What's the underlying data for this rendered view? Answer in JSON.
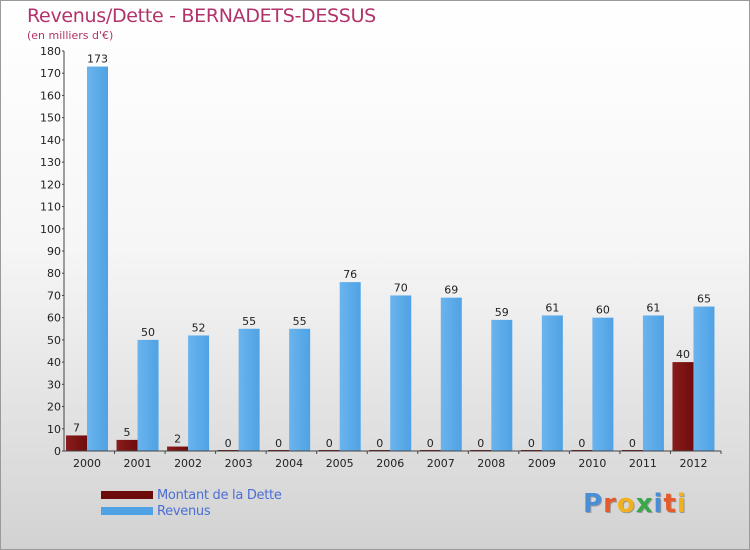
{
  "title": "Revenus/Dette - BERNADETS-DESSUS",
  "subtitle": "(en milliers d'€)",
  "brand": "Proxiti",
  "brand_colors": [
    "#4a8ed8",
    "#e85a2a",
    "#f0b020",
    "#3aa84a",
    "#4a8ed8",
    "#e85a2a",
    "#f0b020"
  ],
  "colors": {
    "dette": "#6e0c0c",
    "revenus": "#4fa2e4"
  },
  "chart_data": {
    "type": "bar",
    "title": "Revenus/Dette - BERNADETS-DESSUS",
    "ylabel": "(en milliers d'€)",
    "xlabel": "",
    "ylim": [
      0,
      180
    ],
    "ystep": 10,
    "grid": false,
    "legend_position": "bottom-left",
    "categories": [
      "2000",
      "2001",
      "2002",
      "2003",
      "2004",
      "2005",
      "2006",
      "2007",
      "2008",
      "2009",
      "2010",
      "2011",
      "2012"
    ],
    "series": [
      {
        "name": "Montant de la Dette",
        "values": [
          7,
          5,
          2,
          0,
          0,
          0,
          0,
          0,
          0,
          0,
          0,
          0,
          40
        ]
      },
      {
        "name": "Revenus",
        "values": [
          173,
          50,
          52,
          55,
          55,
          76,
          70,
          69,
          59,
          61,
          60,
          61,
          65
        ]
      }
    ]
  }
}
